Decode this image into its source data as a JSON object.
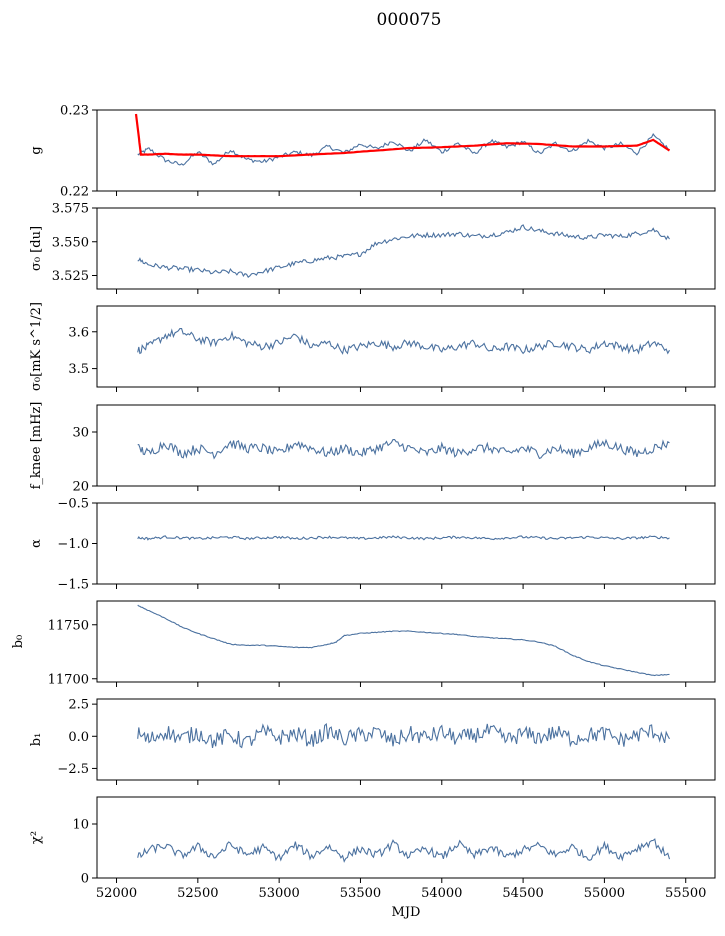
{
  "figure": {
    "title": "000075"
  },
  "colors": {
    "series": "#4c72a0",
    "overlay": "#ff0000",
    "axes": "#000000"
  },
  "chart_data": [
    {
      "type": "line",
      "ylabel": "g",
      "ylim": [
        0.22,
        0.23
      ],
      "yticks": [
        0.22,
        0.23
      ],
      "ytick_labels": [
        "0.22",
        "0.23"
      ],
      "series": [
        {
          "color": "#4c72a0",
          "x": [
            52130,
            52200,
            52300,
            52400,
            52500,
            52600,
            52700,
            52800,
            52900,
            53000,
            53100,
            53200,
            53300,
            53400,
            53500,
            53600,
            53700,
            53800,
            53900,
            54000,
            54100,
            54200,
            54300,
            54400,
            54500,
            54600,
            54700,
            54800,
            54900,
            55000,
            55100,
            55200,
            55300,
            55400
          ],
          "y": [
            0.2245,
            0.2252,
            0.2238,
            0.2232,
            0.2248,
            0.2233,
            0.2251,
            0.2239,
            0.2236,
            0.2242,
            0.2248,
            0.2244,
            0.2255,
            0.2247,
            0.2258,
            0.2252,
            0.2262,
            0.2249,
            0.2263,
            0.2248,
            0.2259,
            0.2246,
            0.2262,
            0.2254,
            0.2261,
            0.2246,
            0.2259,
            0.2249,
            0.2262,
            0.2253,
            0.2258,
            0.2247,
            0.2268,
            0.2251
          ]
        },
        {
          "color": "#ff0000",
          "x": [
            52120,
            52150,
            52200,
            52300,
            52400,
            52500,
            52600,
            52700,
            52800,
            52900,
            53000,
            53200,
            53400,
            53600,
            53800,
            54000,
            54200,
            54400,
            54600,
            54800,
            55000,
            55200,
            55300,
            55400
          ],
          "y": [
            0.2295,
            0.2245,
            0.2245,
            0.2246,
            0.2245,
            0.2245,
            0.2244,
            0.2243,
            0.2243,
            0.2243,
            0.2243,
            0.2245,
            0.2247,
            0.225,
            0.2253,
            0.2254,
            0.2256,
            0.2259,
            0.2258,
            0.2255,
            0.2255,
            0.2256,
            0.2263,
            0.225
          ]
        }
      ]
    },
    {
      "type": "line",
      "ylabel": "σ₀ [du]",
      "ylim": [
        3.515,
        3.575
      ],
      "yticks": [
        3.525,
        3.55,
        3.575
      ],
      "ytick_labels": [
        "3.525",
        "3.550",
        "3.575"
      ],
      "series": [
        {
          "color": "#4c72a0",
          "x": [
            52130,
            52200,
            52300,
            52400,
            52500,
            52600,
            52700,
            52800,
            52900,
            53000,
            53100,
            53200,
            53300,
            53400,
            53500,
            53600,
            53700,
            53800,
            53900,
            54000,
            54100,
            54200,
            54300,
            54400,
            54500,
            54600,
            54700,
            54800,
            54900,
            55000,
            55100,
            55200,
            55300,
            55400
          ],
          "y": [
            3.537,
            3.533,
            3.531,
            3.53,
            3.529,
            3.527,
            3.528,
            3.525,
            3.528,
            3.531,
            3.534,
            3.536,
            3.538,
            3.539,
            3.541,
            3.549,
            3.552,
            3.554,
            3.555,
            3.555,
            3.556,
            3.554,
            3.555,
            3.557,
            3.561,
            3.558,
            3.556,
            3.554,
            3.553,
            3.555,
            3.554,
            3.556,
            3.559,
            3.552
          ]
        }
      ]
    },
    {
      "type": "line",
      "ylabel": "σ₀[mK s^1/2]",
      "ylim": [
        3.45,
        3.67
      ],
      "yticks": [
        3.5,
        3.6
      ],
      "ytick_labels": [
        "3.5",
        "3.6"
      ],
      "series": [
        {
          "color": "#4c72a0",
          "x": [
            52130,
            52200,
            52300,
            52400,
            52500,
            52600,
            52700,
            52800,
            52900,
            53000,
            53100,
            53200,
            53300,
            53400,
            53500,
            53600,
            53700,
            53800,
            53900,
            54000,
            54100,
            54200,
            54300,
            54400,
            54500,
            54600,
            54700,
            54800,
            54900,
            55000,
            55100,
            55200,
            55300,
            55400
          ],
          "y": [
            3.55,
            3.56,
            3.59,
            3.6,
            3.58,
            3.57,
            3.59,
            3.57,
            3.56,
            3.57,
            3.59,
            3.56,
            3.57,
            3.55,
            3.56,
            3.57,
            3.56,
            3.57,
            3.56,
            3.55,
            3.56,
            3.57,
            3.55,
            3.56,
            3.55,
            3.56,
            3.57,
            3.56,
            3.55,
            3.57,
            3.56,
            3.55,
            3.57,
            3.55
          ]
        }
      ]
    },
    {
      "type": "line",
      "ylabel": "f_knee [mHz]",
      "ylim": [
        20,
        35
      ],
      "yticks": [
        20,
        30
      ],
      "ytick_labels": [
        "20",
        "30"
      ],
      "series": [
        {
          "color": "#4c72a0",
          "x": [
            52130,
            52200,
            52300,
            52400,
            52500,
            52600,
            52700,
            52800,
            52900,
            53000,
            53100,
            53200,
            53300,
            53400,
            53500,
            53600,
            53700,
            53800,
            53900,
            54000,
            54100,
            54200,
            54300,
            54400,
            54500,
            54600,
            54700,
            54800,
            54900,
            55000,
            55100,
            55200,
            55300,
            55400
          ],
          "y": [
            27,
            26,
            28,
            26,
            27,
            26,
            28,
            27,
            27,
            26,
            28,
            27,
            26,
            27,
            26,
            27,
            28,
            27,
            26,
            27,
            26,
            27,
            27,
            26,
            27,
            26,
            27,
            26,
            27,
            28,
            27,
            26,
            27,
            28
          ]
        }
      ]
    },
    {
      "type": "line",
      "ylabel": "α",
      "ylim": [
        -1.5,
        -0.5
      ],
      "yticks": [
        -1.5,
        -1.0,
        -0.5
      ],
      "ytick_labels": [
        "−1.5",
        "−1.0",
        "−0.5"
      ],
      "series": [
        {
          "color": "#4c72a0",
          "x": [
            52130,
            52200,
            52300,
            52400,
            52500,
            52600,
            52700,
            52800,
            52900,
            53000,
            53100,
            53200,
            53300,
            53400,
            53500,
            53600,
            53700,
            53800,
            53900,
            54000,
            54100,
            54200,
            54300,
            54400,
            54500,
            54600,
            54700,
            54800,
            54900,
            55000,
            55100,
            55200,
            55300,
            55400
          ],
          "y": [
            -0.93,
            -0.94,
            -0.92,
            -0.93,
            -0.94,
            -0.93,
            -0.92,
            -0.94,
            -0.93,
            -0.92,
            -0.94,
            -0.93,
            -0.92,
            -0.93,
            -0.94,
            -0.93,
            -0.92,
            -0.93,
            -0.94,
            -0.93,
            -0.92,
            -0.93,
            -0.94,
            -0.93,
            -0.92,
            -0.93,
            -0.94,
            -0.93,
            -0.92,
            -0.93,
            -0.94,
            -0.93,
            -0.92,
            -0.93
          ]
        }
      ]
    },
    {
      "type": "line",
      "ylabel": "b₀",
      "ylim": [
        11697,
        11772
      ],
      "yticks": [
        11700,
        11750
      ],
      "ytick_labels": [
        "11700",
        "11750"
      ],
      "series": [
        {
          "color": "#4c72a0",
          "x": [
            52130,
            52200,
            52300,
            52400,
            52500,
            52600,
            52700,
            52800,
            52900,
            53000,
            53100,
            53200,
            53300,
            53350,
            53400,
            53500,
            53600,
            53700,
            53800,
            53900,
            54000,
            54100,
            54200,
            54300,
            54400,
            54500,
            54600,
            54700,
            54800,
            54900,
            55000,
            55100,
            55200,
            55300,
            55400
          ],
          "y": [
            11768,
            11763,
            11756,
            11748,
            11742,
            11737,
            11732,
            11731,
            11731,
            11730,
            11729,
            11729,
            11732,
            11734,
            11740,
            11742,
            11743,
            11744,
            11744,
            11743,
            11742,
            11741,
            11739,
            11738,
            11737,
            11736,
            11734,
            11730,
            11722,
            11716,
            11712,
            11709,
            11706,
            11703,
            11704
          ]
        }
      ]
    },
    {
      "type": "line",
      "ylabel": "b₁",
      "ylim": [
        -3.4,
        2.9
      ],
      "yticks": [
        -2.5,
        0.0,
        2.5
      ],
      "ytick_labels": [
        "−2.5",
        "0.0",
        "2.5"
      ],
      "series": [
        {
          "color": "#4c72a0",
          "x": [
            52130,
            52200,
            52300,
            52400,
            52500,
            52600,
            52700,
            52800,
            52900,
            53000,
            53100,
            53200,
            53300,
            53400,
            53500,
            53600,
            53700,
            53800,
            53900,
            54000,
            54100,
            54200,
            54300,
            54400,
            54500,
            54600,
            54700,
            54800,
            54900,
            55000,
            55100,
            55200,
            55300,
            55400
          ],
          "y": [
            0.2,
            -0.3,
            0.4,
            -0.2,
            0.3,
            -0.4,
            0.1,
            -0.5,
            0.3,
            -0.1,
            0.2,
            -0.3,
            0.4,
            -0.2,
            0.1,
            0.3,
            -0.4,
            0.2,
            -0.1,
            0.3,
            -0.2,
            0.1,
            0.4,
            -0.3,
            0.2,
            -0.1,
            0.3,
            -0.2,
            0.1,
            0.2,
            -0.3,
            0.1,
            0.4,
            -0.2
          ]
        }
      ]
    },
    {
      "type": "line",
      "ylabel": "χ²",
      "xlabel": "MJD",
      "ylim": [
        0,
        15
      ],
      "yticks": [
        0,
        10
      ],
      "ytick_labels": [
        "0",
        "10"
      ],
      "xticks": [
        52000,
        52500,
        53000,
        53500,
        54000,
        54500,
        55000,
        55500
      ],
      "xtick_labels": [
        "52000",
        "52500",
        "53000",
        "53500",
        "54000",
        "54500",
        "55000",
        "55500"
      ],
      "xlim": [
        51880,
        55680
      ],
      "series": [
        {
          "color": "#4c72a0",
          "x": [
            52130,
            52200,
            52300,
            52400,
            52500,
            52600,
            52700,
            52800,
            52900,
            53000,
            53100,
            53200,
            53300,
            53400,
            53500,
            53600,
            53700,
            53800,
            53900,
            54000,
            54100,
            54200,
            54300,
            54400,
            54500,
            54600,
            54700,
            54800,
            54900,
            55000,
            55100,
            55200,
            55300,
            55400
          ],
          "y": [
            3.8,
            5.2,
            6.0,
            4.1,
            5.8,
            3.9,
            6.2,
            4.3,
            5.6,
            3.7,
            6.1,
            4.0,
            5.9,
            3.8,
            5.4,
            4.2,
            6.3,
            4.0,
            5.5,
            3.8,
            6.4,
            4.1,
            5.7,
            3.9,
            5.2,
            6.0,
            4.2,
            5.8,
            3.7,
            5.9,
            4.0,
            5.5,
            7.0,
            3.5
          ]
        }
      ]
    }
  ]
}
